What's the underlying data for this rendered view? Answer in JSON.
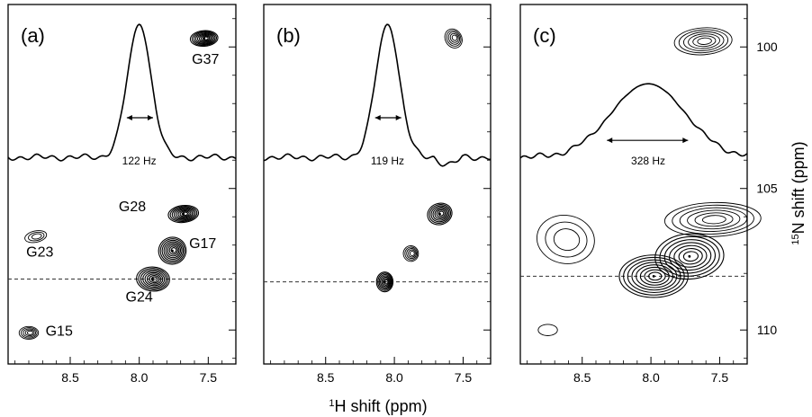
{
  "chart_data": {
    "type": "scatter",
    "subtype": "2D NMR contour spectra (1H-15N correlation), three panels",
    "shared_xlabel_sup": "1",
    "shared_xlabel_rest": "H shift (ppm)",
    "shared_ylabel_sup": "15",
    "shared_ylabel_rest": "N shift (ppm)",
    "x_reversed": true,
    "xlim": [
      8.95,
      7.3
    ],
    "ylim": [
      98.5,
      111.2
    ],
    "x_ticks": [
      "8.5",
      "8.0",
      "7.5"
    ],
    "x_tick_values": [
      8.5,
      8.0,
      7.5
    ],
    "y_ticks": [
      "100",
      "105",
      "110"
    ],
    "y_tick_values": [
      100,
      105,
      110
    ],
    "grid": false,
    "panels": [
      {
        "label": "(a)",
        "dashed_line_y": 108.2,
        "slice": {
          "peak_x": 8.0,
          "width_label": "122 Hz",
          "left_x": 8.09,
          "right_x": 7.9,
          "arrow_y": 102.5
        },
        "peaks": [
          {
            "name": "G37",
            "x": 7.53,
            "y": 99.7
          },
          {
            "name": "G28",
            "x": 7.68,
            "y": 105.9
          },
          {
            "name": "G17",
            "x": 7.76,
            "y": 107.2
          },
          {
            "name": "G24",
            "x": 7.9,
            "y": 108.2
          },
          {
            "name": "G23",
            "x": 8.75,
            "y": 106.7
          },
          {
            "name": "G15",
            "x": 8.8,
            "y": 110.1
          }
        ],
        "labels": [
          {
            "text": "G37",
            "x": 7.52,
            "y": 100.6
          },
          {
            "text": "G28",
            "x": 8.05,
            "y": 105.8
          },
          {
            "text": "G17",
            "x": 7.54,
            "y": 107.1
          },
          {
            "text": "G24",
            "x": 8.0,
            "y": 109.0
          },
          {
            "text": "G23",
            "x": 8.72,
            "y": 107.4
          },
          {
            "text": "G15",
            "x": 8.58,
            "y": 110.2
          }
        ]
      },
      {
        "label": "(b)",
        "dashed_line_y": 108.3,
        "slice": {
          "peak_x": 8.05,
          "width_label": "119 Hz",
          "left_x": 8.14,
          "right_x": 7.95,
          "arrow_y": 102.5
        },
        "peaks": [
          {
            "x": 7.57,
            "y": 99.7
          },
          {
            "x": 7.67,
            "y": 105.9
          },
          {
            "x": 7.88,
            "y": 107.3
          },
          {
            "x": 8.07,
            "y": 108.3
          }
        ],
        "labels": []
      },
      {
        "label": "(c)",
        "dashed_line_y": 108.1,
        "slice": {
          "peak_x": 8.02,
          "width_label": "328 Hz",
          "left_x": 8.32,
          "right_x": 7.73,
          "arrow_y": 103.3
        },
        "peaks": [
          {
            "x": 7.62,
            "y": 99.8
          },
          {
            "x": 7.55,
            "y": 106.1
          },
          {
            "x": 7.72,
            "y": 107.4
          },
          {
            "x": 7.98,
            "y": 108.1
          },
          {
            "x": 8.62,
            "y": 106.8
          },
          {
            "x": 8.75,
            "y": 110.0
          }
        ],
        "labels": []
      }
    ]
  }
}
